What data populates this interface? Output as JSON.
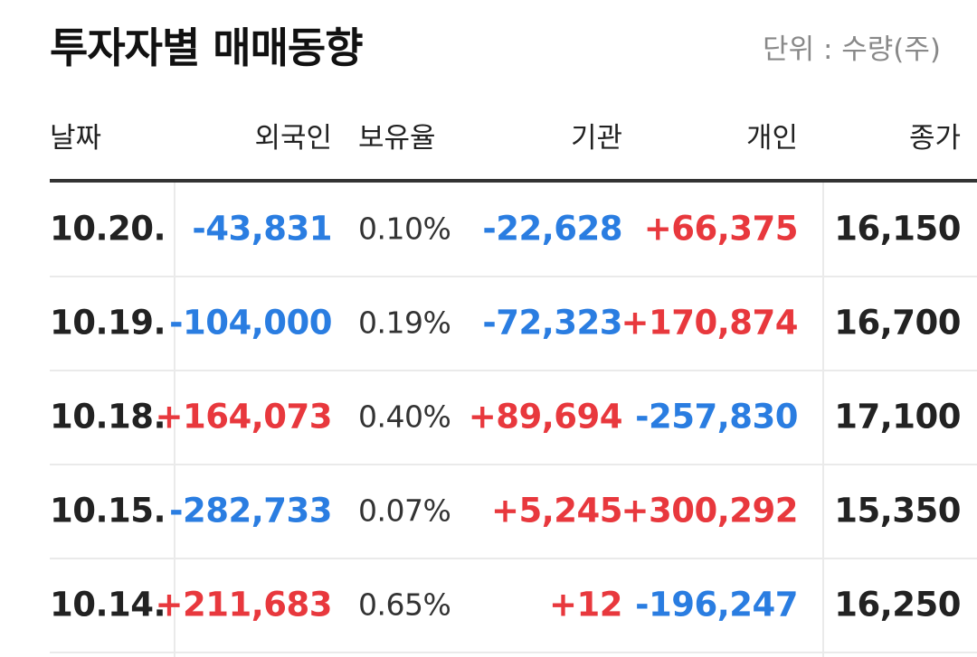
{
  "header": {
    "title": "투자자별 매매동향",
    "unit": "단위 : 수량(주)"
  },
  "table": {
    "columns": [
      "날짜",
      "외국인",
      "보유율",
      "기관",
      "개인",
      "종가"
    ],
    "rows": [
      [
        "10.20.",
        "-43,831",
        "0.10%",
        "-22,628",
        "+66,375",
        "16,150"
      ],
      [
        "10.19.",
        "-104,000",
        "0.19%",
        "-72,323",
        "+170,874",
        "16,700"
      ],
      [
        "10.18.",
        "+164,073",
        "0.40%",
        "+89,694",
        "-257,830",
        "17,100"
      ],
      [
        "10.15.",
        "-282,733",
        "0.07%",
        "+5,245",
        "+300,292",
        "15,350"
      ],
      [
        "10.14.",
        "+211,683",
        "0.65%",
        "+12",
        "-196,247",
        "16,250"
      ]
    ]
  }
}
